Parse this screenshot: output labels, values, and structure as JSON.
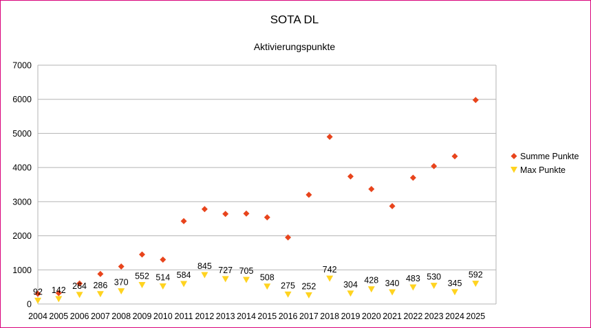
{
  "chart_data": {
    "type": "scatter",
    "title": "SOTA DL",
    "subtitle": "Aktivierungspunkte",
    "xlabel": "",
    "ylabel": "",
    "ylim": [
      0,
      7000
    ],
    "yticks": [
      0,
      1000,
      2000,
      3000,
      4000,
      5000,
      6000,
      7000
    ],
    "grid": true,
    "legend_position": "right",
    "categories": [
      "2004",
      "2005",
      "2006",
      "2007",
      "2008",
      "2009",
      "2010",
      "2011",
      "2012",
      "2013",
      "2014",
      "2015",
      "2016",
      "2017",
      "2018",
      "2019",
      "2020",
      "2021",
      "2022",
      "2023",
      "2024",
      "2025"
    ],
    "series": [
      {
        "name": "Summe Punkte",
        "marker": "diamond",
        "color": "#e8441c",
        "values": [
          300,
          320,
          600,
          880,
          1100,
          1450,
          1300,
          2430,
          2780,
          2640,
          2650,
          2540,
          1950,
          3200,
          4900,
          3740,
          3370,
          2870,
          3700,
          4040,
          4330,
          5980
        ]
      },
      {
        "name": "Max Punkte",
        "marker": "triangle-down",
        "color": "#ffd320",
        "values": [
          92,
          142,
          264,
          286,
          370,
          552,
          514,
          584,
          845,
          727,
          705,
          508,
          275,
          252,
          742,
          304,
          428,
          340,
          483,
          530,
          345,
          592
        ],
        "data_labels": [
          "92",
          "142",
          "264",
          "286",
          "370",
          "552",
          "514",
          "584",
          "845",
          "727",
          "705",
          "508",
          "275",
          "252",
          "742",
          "304",
          "428",
          "340",
          "483",
          "530",
          "345",
          "592"
        ]
      }
    ]
  }
}
